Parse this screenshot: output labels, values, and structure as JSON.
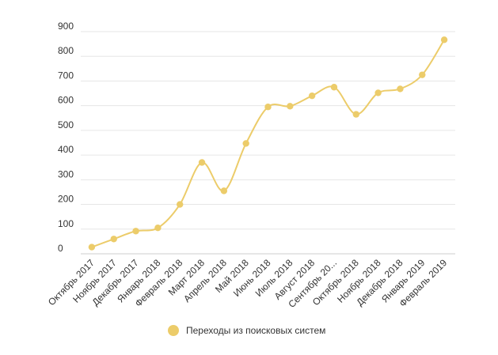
{
  "chart_data": {
    "type": "line",
    "categories": [
      "Октябрь 2017",
      "Ноябрь 2017",
      "Декабрь 2017",
      "Январь 2018",
      "Февраль 2018",
      "Март 2018",
      "Апрель 2018",
      "Май 2018",
      "Июнь 2018",
      "Июль 2018",
      "Август 2018",
      "Сентябрь 20...",
      "Октябрь 2018",
      "Ноябрь 2018",
      "Декабрь 2018",
      "Январь 2019",
      "Февраль 2019"
    ],
    "series": [
      {
        "name": "Переходы из поисковых систем",
        "values": [
          27,
          60,
          92,
          105,
          200,
          370,
          255,
          447,
          595,
          598,
          640,
          675,
          565,
          652,
          668,
          725,
          867
        ],
        "color": "#eccc6a"
      }
    ],
    "ylim": [
      0,
      900
    ],
    "yticks": [
      0,
      100,
      200,
      300,
      400,
      500,
      600,
      700,
      800,
      900
    ],
    "grid": true,
    "legend_position": "bottom"
  }
}
